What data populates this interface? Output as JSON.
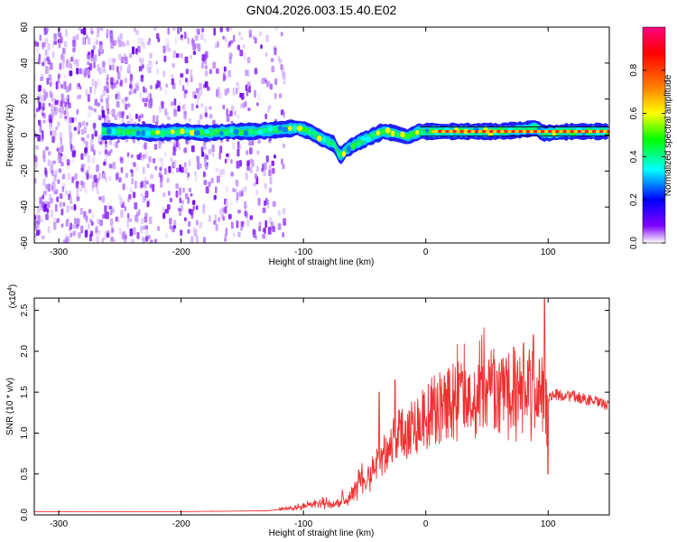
{
  "figure_title": "GN04.2026.003.15.40.E02",
  "chart_data": [
    {
      "type": "heatmap",
      "xlabel": "Height of straight line (km)",
      "ylabel": "Frequency (Hz)",
      "xlim": [
        -320,
        150
      ],
      "ylim": [
        -60,
        60
      ],
      "xticks": [
        -300,
        -200,
        -100,
        0,
        100
      ],
      "yticks": [
        -60,
        -40,
        -20,
        0,
        20,
        40,
        60
      ],
      "colorbar": {
        "label": "Normalized spectral amplitude",
        "range": [
          0.0,
          1.0
        ],
        "ticks": [
          0.0,
          0.2,
          0.4,
          0.6,
          0.8
        ],
        "colormap": [
          "#ff0080",
          "#ff0000",
          "#ff8000",
          "#ffff00",
          "#00ff00",
          "#00ffff",
          "#0000ff",
          "#8000ff",
          "#ffffff"
        ]
      },
      "band_center": [
        [
          -265,
          2
        ],
        [
          -240,
          2
        ],
        [
          -220,
          1
        ],
        [
          -200,
          2
        ],
        [
          -180,
          1
        ],
        [
          -160,
          2
        ],
        [
          -140,
          2
        ],
        [
          -120,
          3
        ],
        [
          -105,
          4
        ],
        [
          -95,
          2
        ],
        [
          -85,
          -2
        ],
        [
          -75,
          -5
        ],
        [
          -70,
          -12
        ],
        [
          -65,
          -8
        ],
        [
          -55,
          -4
        ],
        [
          -45,
          -1
        ],
        [
          -35,
          2
        ],
        [
          -25,
          1
        ],
        [
          -15,
          -1
        ],
        [
          -5,
          2
        ],
        [
          10,
          2
        ],
        [
          30,
          2
        ],
        [
          60,
          2
        ],
        [
          80,
          3
        ],
        [
          90,
          4
        ],
        [
          96,
          1
        ],
        [
          120,
          2
        ],
        [
          150,
          2
        ]
      ],
      "noise_region": [
        -320,
        -115
      ]
    },
    {
      "type": "line",
      "xlabel": "Height of straight line (km)",
      "ylabel": "SNR (10 * v/v)",
      "y_multiplier": "(x10^4)",
      "y_multiplier_base": "(x10",
      "y_multiplier_exp": "4",
      "xlim": [
        -320,
        150
      ],
      "ylim": [
        0,
        2.65
      ],
      "xticks": [
        -300,
        -200,
        -100,
        0,
        100
      ],
      "yticks": [
        0.0,
        0.5,
        1.0,
        1.5,
        2.0,
        2.5
      ],
      "ytick_labels": [
        "0.0",
        "0.5",
        "1.0",
        "1.5",
        "2.0",
        "2.5"
      ],
      "color": "#f03030",
      "series": [
        {
          "name": "SNR",
          "envelope": [
            [
              -320,
              0.04
            ],
            [
              -200,
              0.04
            ],
            [
              -130,
              0.05
            ],
            [
              -110,
              0.08
            ],
            [
              -95,
              0.12
            ],
            [
              -85,
              0.15
            ],
            [
              -75,
              0.12
            ],
            [
              -65,
              0.18
            ],
            [
              -55,
              0.35
            ],
            [
              -45,
              0.55
            ],
            [
              -35,
              0.75
            ],
            [
              -25,
              0.95
            ],
            [
              -15,
              1.05
            ],
            [
              -5,
              1.15
            ],
            [
              5,
              1.25
            ],
            [
              15,
              1.35
            ],
            [
              25,
              1.45
            ],
            [
              35,
              1.52
            ],
            [
              45,
              1.58
            ],
            [
              55,
              1.58
            ],
            [
              65,
              1.55
            ],
            [
              75,
              1.5
            ],
            [
              85,
              1.45
            ],
            [
              95,
              1.42
            ],
            [
              105,
              1.47
            ],
            [
              120,
              1.45
            ],
            [
              135,
              1.4
            ],
            [
              150,
              1.33
            ]
          ],
          "spikes": [
            [
              -68,
              0.3
            ],
            [
              -55,
              0.55
            ],
            [
              -38,
              1.5
            ],
            [
              -25,
              1.65
            ],
            [
              55,
              1.85
            ],
            [
              62,
              1.9
            ],
            [
              72,
              2.05
            ],
            [
              80,
              2.1
            ],
            [
              88,
              2.2
            ],
            [
              93,
              1.9
            ],
            [
              97,
              2.65
            ],
            [
              100,
              0.5
            ]
          ]
        }
      ]
    }
  ]
}
